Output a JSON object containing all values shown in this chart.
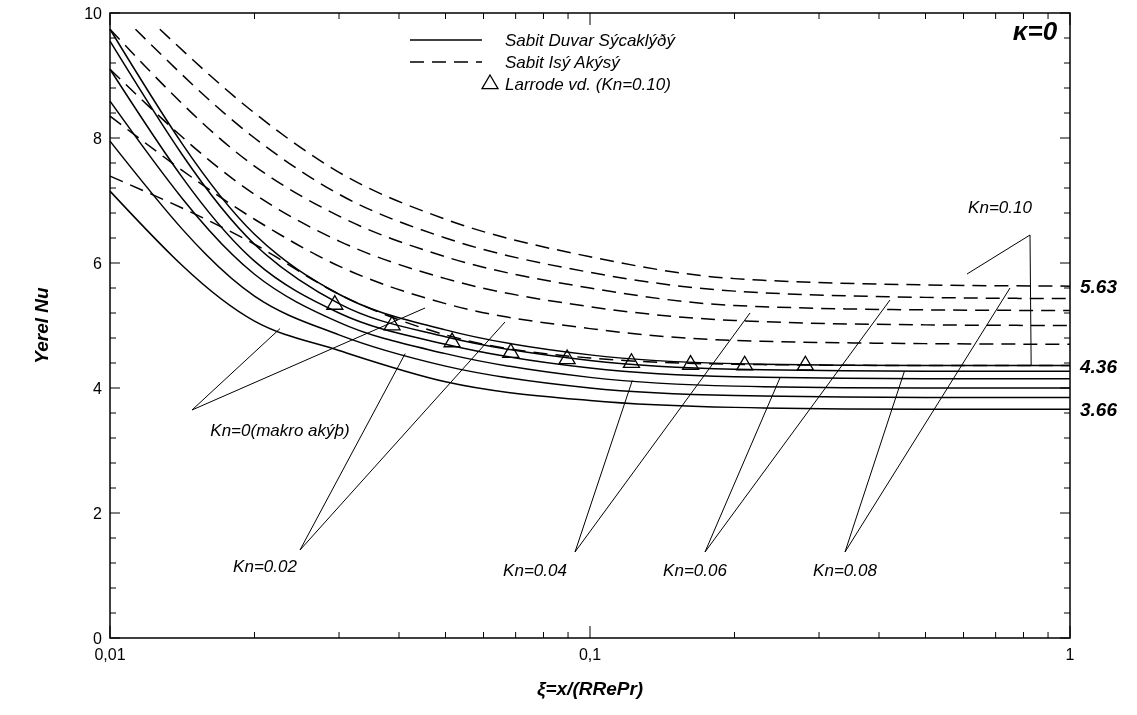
{
  "chart_data": {
    "type": "line",
    "xlabel": "ξ=x/(RRePr)",
    "ylabel": "Yerel Nu",
    "log": "x",
    "xlim": [
      0.01,
      1
    ],
    "ylim": [
      0,
      10
    ],
    "xticks": [
      {
        "value": 0.01,
        "label": "0,01"
      },
      {
        "value": 0.02,
        "label": null
      },
      {
        "value": 0.03,
        "label": null
      },
      {
        "value": 0.04,
        "label": null
      },
      {
        "value": 0.05,
        "label": null
      },
      {
        "value": 0.06,
        "label": null
      },
      {
        "value": 0.07,
        "label": null
      },
      {
        "value": 0.08,
        "label": null
      },
      {
        "value": 0.09,
        "label": null
      },
      {
        "value": 0.1,
        "label": "0,1"
      },
      {
        "value": 0.2,
        "label": null
      },
      {
        "value": 0.3,
        "label": null
      },
      {
        "value": 0.4,
        "label": null
      },
      {
        "value": 0.5,
        "label": null
      },
      {
        "value": 0.6,
        "label": null
      },
      {
        "value": 0.7,
        "label": null
      },
      {
        "value": 0.8,
        "label": null
      },
      {
        "value": 0.9,
        "label": null
      },
      1
    ],
    "yticks": [
      0,
      {
        "value": 0.4,
        "label": null
      },
      {
        "value": 0.8,
        "label": null
      },
      {
        "value": 1.2,
        "label": null
      },
      {
        "value": 1.6,
        "label": null
      },
      2,
      {
        "value": 2.4,
        "label": null
      },
      {
        "value": 2.8,
        "label": null
      },
      {
        "value": 3.2,
        "label": null
      },
      {
        "value": 3.6,
        "label": null
      },
      4,
      {
        "value": 4.4,
        "label": null
      },
      {
        "value": 4.8,
        "label": null
      },
      {
        "value": 5.2,
        "label": null
      },
      {
        "value": 5.6,
        "label": null
      },
      6,
      {
        "value": 6.4,
        "label": null
      },
      {
        "value": 6.8,
        "label": null
      },
      {
        "value": 7.2,
        "label": null
      },
      {
        "value": 7.6,
        "label": null
      },
      8,
      {
        "value": 8.4,
        "label": null
      },
      {
        "value": 8.8,
        "label": null
      },
      {
        "value": 9.2,
        "label": null
      },
      {
        "value": 9.6,
        "label": null
      },
      10
    ],
    "legend": "top",
    "grid": false,
    "series": [
      {
        "name": "Sabit Duvar Sýcaklýðý",
        "type": "line",
        "line_style": "solid",
        "color": "#000000",
        "x": [
          0.01,
          0.02,
          0.03,
          0.05,
          0.1,
          0.2,
          0.5,
          1
        ],
        "values": [
          7.15,
          5.07,
          4.6,
          4.1,
          3.8,
          3.69,
          3.66,
          3.66
        ]
      },
      {
        "type": "line",
        "line_style": "solid",
        "color": "#000000",
        "x": [
          0.01,
          0.02,
          0.03,
          0.05,
          0.1,
          0.2,
          0.5,
          1
        ],
        "values": [
          7.95,
          5.47,
          4.85,
          4.35,
          4.0,
          3.88,
          3.85,
          3.85
        ]
      },
      {
        "type": "line",
        "line_style": "solid",
        "color": "#000000",
        "x": [
          0.01,
          0.02,
          0.03,
          0.05,
          0.1,
          0.2,
          0.5,
          1
        ],
        "values": [
          8.59,
          5.82,
          5.05,
          4.55,
          4.17,
          4.03,
          4.0,
          4.0
        ]
      },
      {
        "type": "line",
        "line_style": "solid",
        "color": "#000000",
        "x": [
          0.01,
          0.02,
          0.03,
          0.05,
          0.1,
          0.2,
          0.5,
          1
        ],
        "values": [
          9.1,
          6.03,
          5.2,
          4.7,
          4.32,
          4.18,
          4.15,
          4.15
        ]
      },
      {
        "type": "line",
        "line_style": "solid",
        "color": "#000000",
        "x": [
          0.01,
          0.02,
          0.03,
          0.05,
          0.1,
          0.2,
          0.5,
          1
        ],
        "values": [
          9.55,
          6.3,
          5.35,
          4.82,
          4.44,
          4.3,
          4.27,
          4.27
        ]
      },
      {
        "type": "line",
        "line_style": "solid",
        "color": "#000000",
        "x": [
          0.01,
          0.02,
          0.03,
          0.05,
          0.1,
          0.2,
          0.5,
          1
        ],
        "values": [
          9.74,
          6.46,
          5.5,
          4.93,
          4.53,
          4.39,
          4.36,
          4.36
        ]
      },
      {
        "name": "Sabit Isý Akýsý",
        "type": "line",
        "line_style": "dashed",
        "color": "#000000",
        "x": [
          0.01,
          0.02,
          0.03,
          0.05,
          0.1,
          0.2,
          0.5,
          1
        ],
        "values": [
          7.39,
          6.3,
          5.5,
          4.85,
          4.48,
          4.38,
          4.36,
          4.36
        ]
      },
      {
        "type": "line",
        "line_style": "dashed",
        "color": "#000000",
        "x": [
          0.01,
          0.02,
          0.03,
          0.05,
          0.1,
          0.2,
          0.5,
          1
        ],
        "values": [
          8.35,
          6.7,
          5.95,
          5.35,
          4.95,
          4.76,
          4.71,
          4.7
        ]
      },
      {
        "type": "line",
        "line_style": "dashed",
        "color": "#000000",
        "x": [
          0.01,
          0.02,
          0.03,
          0.05,
          0.1,
          0.2,
          0.5,
          1
        ],
        "values": [
          9.1,
          7.1,
          6.35,
          5.75,
          5.3,
          5.08,
          5.01,
          5.0
        ]
      },
      {
        "type": "line",
        "line_style": "dashed",
        "color": "#000000",
        "x": [
          0.01,
          0.02,
          0.03,
          0.05,
          0.1,
          0.2,
          0.5,
          1
        ],
        "values": [
          9.74,
          7.55,
          6.75,
          6.1,
          5.6,
          5.32,
          5.25,
          5.24
        ]
      },
      {
        "type": "line",
        "line_style": "dashed",
        "color": "#000000",
        "x": [
          0.0113,
          0.02,
          0.03,
          0.05,
          0.1,
          0.2,
          0.5,
          1
        ],
        "values": [
          9.74,
          8.0,
          7.1,
          6.4,
          5.85,
          5.55,
          5.45,
          5.43
        ]
      },
      {
        "type": "line",
        "line_style": "dashed",
        "color": "#000000",
        "x": [
          0.0127,
          0.02,
          0.03,
          0.05,
          0.1,
          0.2,
          0.5,
          1
        ],
        "values": [
          9.74,
          8.4,
          7.45,
          6.7,
          6.1,
          5.75,
          5.65,
          5.63
        ]
      },
      {
        "name": "Larrode vd. (Kn=0.10)",
        "type": "scatter",
        "marker": "triangle",
        "color": "#000000",
        "x": [
          0.0294,
          0.0387,
          0.0516,
          0.0684,
          0.0896,
          0.122,
          0.162,
          0.21,
          0.281
        ],
        "values": [
          5.35,
          5.02,
          4.75,
          4.58,
          4.48,
          4.42,
          4.39,
          4.38,
          4.38
        ]
      }
    ],
    "annotations": [
      "κ=0",
      {
        "text": "5.63",
        "x": 1,
        "y": 5.63
      },
      {
        "text": "4.36",
        "x": 1,
        "y": 4.36
      },
      {
        "text": "3.66",
        "x": 1,
        "y": 3.66
      },
      {
        "text": "Kn=0(makro akýþ)",
        "x": 0.0226,
        "y": 4.95
      },
      {
        "text": "Kn=0.02",
        "x": 0.0412,
        "y": 4.55
      },
      {
        "text": "Kn=0.04",
        "x": 0.1225,
        "y": 4.12
      },
      {
        "text": "Kn=0.06",
        "x": 0.249,
        "y": 4.17
      },
      {
        "text": "Kn=0.08",
        "x": 0.452,
        "y": 4.27
      },
      {
        "text": "Kn=0.10",
        "x": 0.83,
        "y": 4.36
      }
    ]
  }
}
